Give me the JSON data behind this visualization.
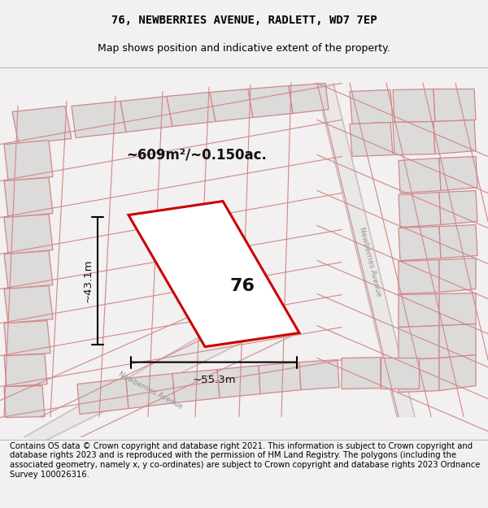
{
  "title": "76, NEWBERRIES AVENUE, RADLETT, WD7 7EP",
  "subtitle": "Map shows position and indicative extent of the property.",
  "footer": "Contains OS data © Crown copyright and database right 2021. This information is subject to Crown copyright and database rights 2023 and is reproduced with the permission of HM Land Registry. The polygons (including the associated geometry, namely x, y co-ordinates) are subject to Crown copyright and database rights 2023 Ordnance Survey 100026316.",
  "bg_color": "#f2f0f0",
  "map_bg": "#eeeaea",
  "highlight_color": "#cc0000",
  "highlight_fill": "#ffffff",
  "dim_color": "#111111",
  "area_label": "~609m²/~0.150ac.",
  "width_label": "~55.3m",
  "height_label": "~43.1m",
  "number_label": "76",
  "road_label": "Newberries Avenue",
  "title_fontsize": 10,
  "subtitle_fontsize": 9,
  "footer_fontsize": 7.2,
  "plot_fill": "#dddada",
  "plot_edge": "#d08888",
  "line_color": "#d08888"
}
